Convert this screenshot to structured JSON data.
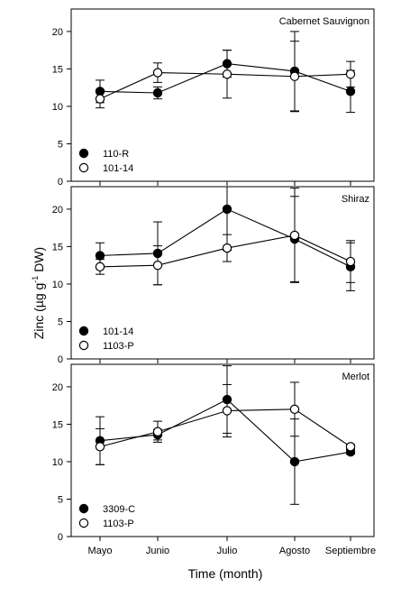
{
  "figure": {
    "ylabel_main": "Zinc (µg g",
    "ylabel_sup": "-1",
    "ylabel_tail": " DW)",
    "xlabel": "Time (month)"
  },
  "chart_data": [
    {
      "type": "line",
      "title": "Cabernet Sauvignon",
      "categories": [
        "Mayo",
        "Junio",
        "Julio",
        "Agosto",
        "Septiembre"
      ],
      "ylim": [
        0,
        23
      ],
      "yticks": [
        0,
        5,
        10,
        15,
        20
      ],
      "legend_position": "bottom-left",
      "grid": false,
      "series": [
        {
          "name": "110-R",
          "marker": "filled",
          "values": [
            12.0,
            11.8,
            15.7,
            14.7,
            12.0
          ],
          "errors": [
            1.5,
            0.8,
            1.8,
            5.3,
            2.8
          ]
        },
        {
          "name": "101-14",
          "marker": "open",
          "values": [
            11.0,
            14.5,
            14.3,
            14.0,
            14.3
          ],
          "errors": [
            1.2,
            1.3,
            3.2,
            4.7,
            1.7
          ]
        }
      ]
    },
    {
      "type": "line",
      "title": "Shiraz",
      "categories": [
        "Mayo",
        "Junio",
        "Julio",
        "Agosto",
        "Septiembre"
      ],
      "ylim": [
        0,
        23
      ],
      "yticks": [
        0,
        5,
        10,
        15,
        20
      ],
      "legend_position": "bottom-left",
      "grid": false,
      "series": [
        {
          "name": "101-14",
          "marker": "filled",
          "values": [
            13.8,
            14.1,
            20.0,
            16.0,
            12.3
          ],
          "errors": [
            1.7,
            4.2,
            5.5,
            5.7,
            3.2
          ]
        },
        {
          "name": "1103-P",
          "marker": "open",
          "values": [
            12.3,
            12.5,
            14.8,
            16.5,
            13.0
          ],
          "errors": [
            1.0,
            2.6,
            1.8,
            6.3,
            2.8
          ]
        }
      ]
    },
    {
      "type": "line",
      "title": "Merlot",
      "categories": [
        "Mayo",
        "Junio",
        "Julio",
        "Agosto",
        "Septiembre"
      ],
      "ylim": [
        0,
        23
      ],
      "yticks": [
        0,
        5,
        10,
        15,
        20
      ],
      "legend_position": "bottom-left",
      "grid": false,
      "series": [
        {
          "name": "3309-C",
          "marker": "filled",
          "values": [
            12.8,
            13.6,
            18.3,
            10.0,
            11.3
          ],
          "errors": [
            3.2,
            0.7,
            4.5,
            5.7,
            0.3
          ]
        },
        {
          "name": "1103-P",
          "marker": "open",
          "values": [
            12.0,
            14.0,
            16.8,
            17.0,
            12.0
          ],
          "errors": [
            2.4,
            1.4,
            3.5,
            3.6,
            0.3
          ]
        }
      ]
    }
  ]
}
